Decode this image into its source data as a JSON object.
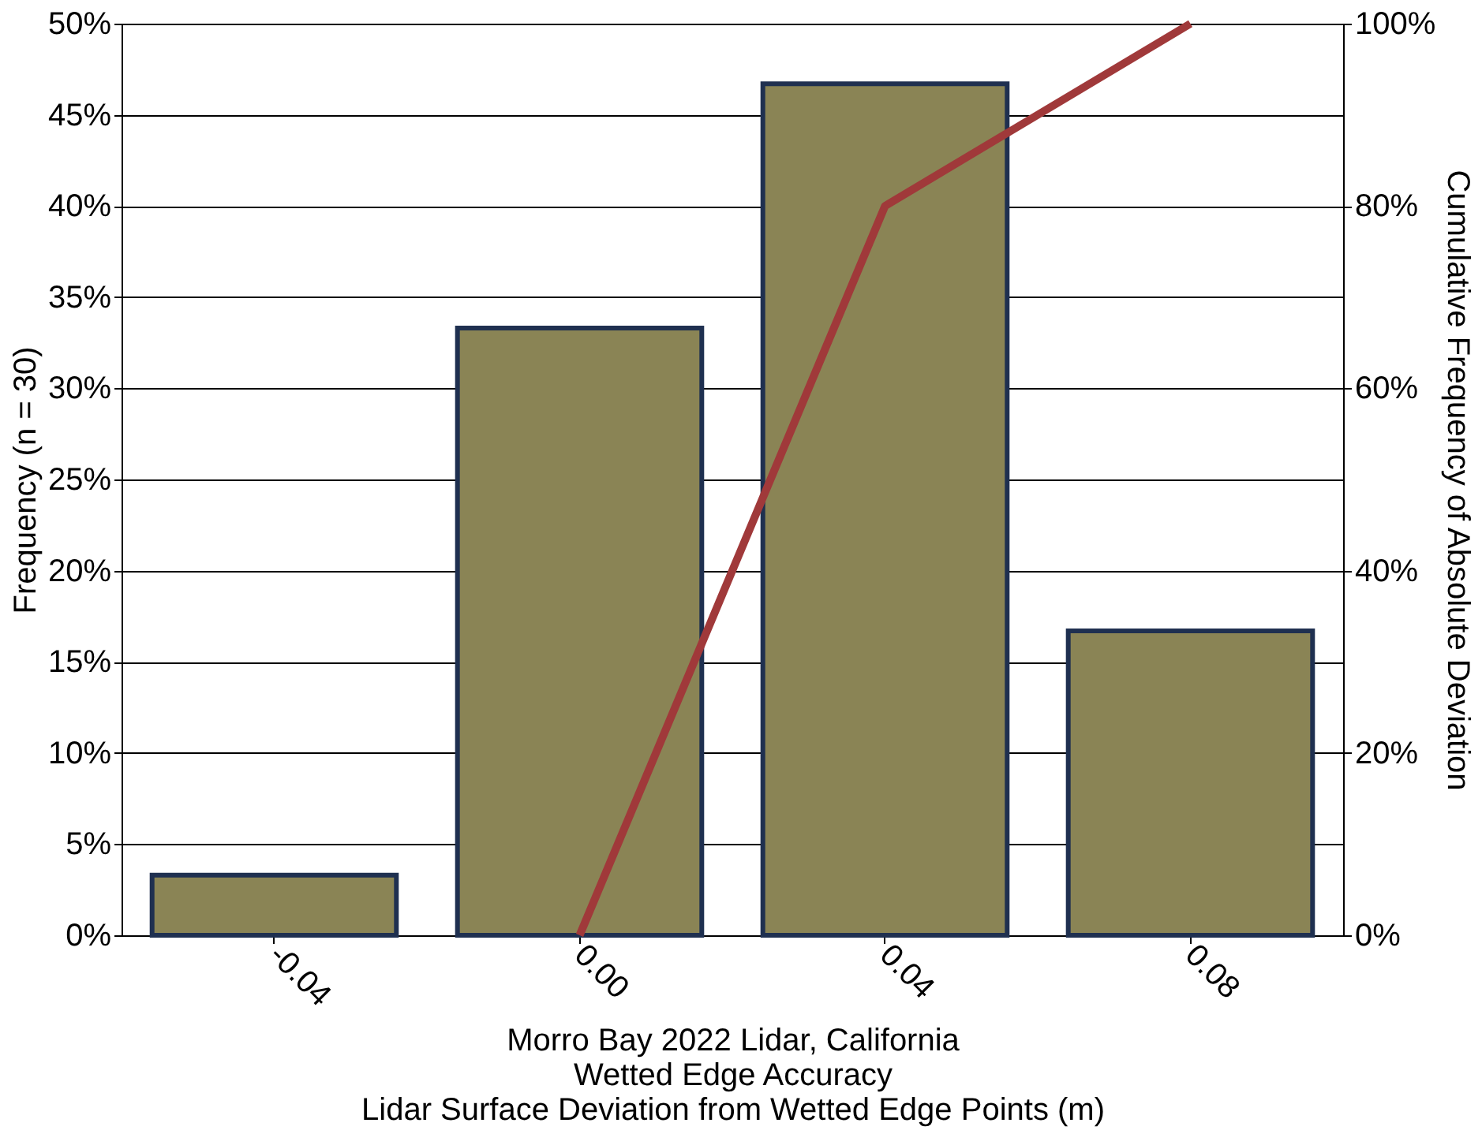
{
  "chart_data": {
    "type": "bar",
    "xlabel": "Morro Bay 2022 Lidar, California\nWetted Edge Accuracy\nLidar Surface Deviation from Wetted Edge Points (m)",
    "ylabel": "Frequency (n = 30)",
    "y2label": "Cumulative Frequency of Absolute Deviation",
    "categories": [
      "-0.04",
      "0.00",
      "0.04",
      "0.08"
    ],
    "series": [
      {
        "color": "#8a8455",
        "values": [
          3.3,
          33.3,
          46.7,
          16.7
        ]
      },
      {
        "type": "line",
        "color": "#a0393a",
        "axis": "y2",
        "values": [
          null,
          0,
          80,
          100
        ]
      }
    ],
    "ylim": [
      0,
      50
    ],
    "yticks": [
      {
        "value": 0,
        "label": "0%"
      },
      {
        "value": 5,
        "label": "5%"
      },
      {
        "value": 10,
        "label": "10%"
      },
      {
        "value": 15,
        "label": "15%"
      },
      {
        "value": 20,
        "label": "20%"
      },
      {
        "value": 25,
        "label": "25%"
      },
      {
        "value": 30,
        "label": "30%"
      },
      {
        "value": 35,
        "label": "35%"
      },
      {
        "value": 40,
        "label": "40%"
      },
      {
        "value": 45,
        "label": "45%"
      },
      {
        "value": 50,
        "label": "50%"
      }
    ],
    "y2lim": [
      0,
      100
    ],
    "y2ticks": [
      {
        "value": 0,
        "label": "0%"
      },
      {
        "value": 20,
        "label": "20%"
      },
      {
        "value": 40,
        "label": "40%"
      },
      {
        "value": 60,
        "label": "60%"
      },
      {
        "value": 80,
        "label": "80%"
      },
      {
        "value": 100,
        "label": "100%"
      }
    ],
    "grid": "y",
    "marker": "none",
    "line_style": "solid"
  }
}
